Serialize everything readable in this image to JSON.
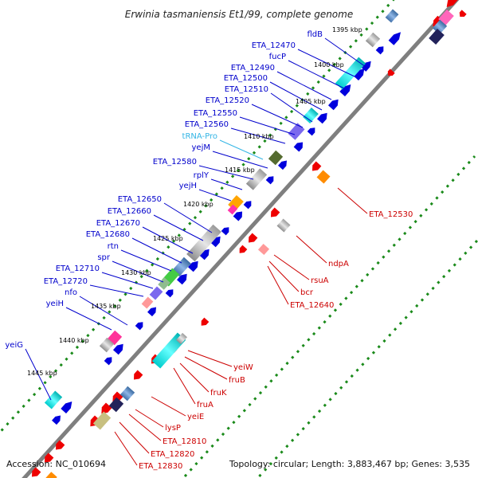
{
  "title": "Erwinia tasmaniensis Et1/99, complete genome",
  "footer": {
    "accession": "Accession: NC_010694",
    "topology": "Topology: circular; Length: 3,883,467 bp; Genes: 3,535"
  },
  "colors": {
    "forward_label": "#0000cc",
    "reverse_label": "#cc0000",
    "trna_label": "#33b5e5",
    "backbone": "#7f7f7f",
    "ticks": "#1a8a1a"
  },
  "kbp_ticks": [
    "1395 kbp",
    "1400 kbp",
    "1405 kbp",
    "1410 kbp",
    "1415 kbp",
    "1420 kbp",
    "1425 kbp",
    "1430 kbp",
    "1435 kbp",
    "1440 kbp",
    "1445 kbp"
  ],
  "forward_genes": [
    {
      "label": "fldB"
    },
    {
      "label": "ETA_12470"
    },
    {
      "label": "fucP"
    },
    {
      "label": "ETA_12490"
    },
    {
      "label": "ETA_12500"
    },
    {
      "label": "ETA_12510"
    },
    {
      "label": "ETA_12520"
    },
    {
      "label": "ETA_12550"
    },
    {
      "label": "ETA_12560"
    },
    {
      "label": "tRNA-Pro",
      "kind": "trna"
    },
    {
      "label": "yejM"
    },
    {
      "label": "ETA_12580"
    },
    {
      "label": "rplY"
    },
    {
      "label": "yejH"
    },
    {
      "label": "ETA_12650"
    },
    {
      "label": "ETA_12660"
    },
    {
      "label": "ETA_12670"
    },
    {
      "label": "ETA_12680"
    },
    {
      "label": "rtn"
    },
    {
      "label": "spr"
    },
    {
      "label": "ETA_12710"
    },
    {
      "label": "ETA_12720"
    },
    {
      "label": "nfo"
    },
    {
      "label": "yeiH"
    },
    {
      "label": "yeiG"
    }
  ],
  "reverse_genes": [
    {
      "label": "ETA_12530"
    },
    {
      "label": "ndpA"
    },
    {
      "label": "rsuA"
    },
    {
      "label": "bcr"
    },
    {
      "label": "ETA_12640"
    },
    {
      "label": "yeiW"
    },
    {
      "label": "fruB"
    },
    {
      "label": "fruK"
    },
    {
      "label": "fruA"
    },
    {
      "label": "yeiE"
    },
    {
      "label": "lysP"
    },
    {
      "label": "ETA_12810"
    },
    {
      "label": "ETA_12820"
    },
    {
      "label": "ETA_12830"
    }
  ]
}
